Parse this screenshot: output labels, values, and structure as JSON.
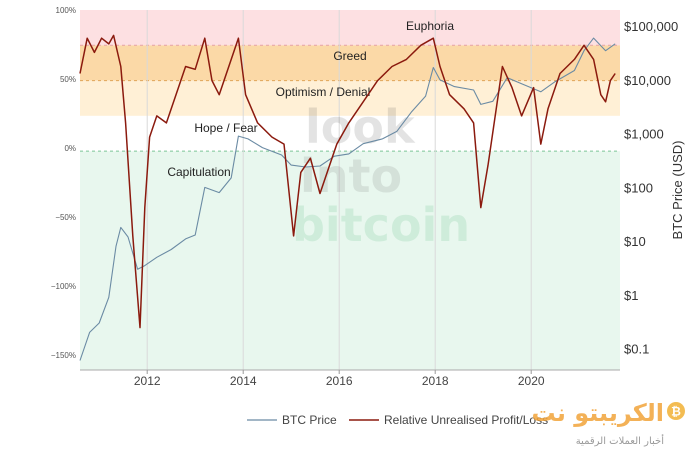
{
  "chart_data": {
    "type": "line",
    "title": "",
    "xlabel": "",
    "ylabel": "BTC Price (USD)",
    "x_ticks": [
      "2012",
      "2014",
      "2016",
      "2018",
      "2020"
    ],
    "x_range": [
      2010.6,
      2021.85
    ],
    "left_axis": {
      "ticks": [
        "100%",
        "50%",
        "0%",
        "−50%",
        "−100%",
        "−150%"
      ],
      "range": [
        -155,
        100
      ]
    },
    "right_axis": {
      "label": "BTC Price (USD)",
      "scale": "log",
      "ticks": [
        "$100,000",
        "$10,000",
        "$1,000",
        "$100",
        "$10",
        "$1",
        "$0.1"
      ],
      "range": [
        0.04,
        200000
      ]
    },
    "zones": [
      {
        "label": "Euphoria",
        "from": 75,
        "to": 100,
        "color": "#fde0e2"
      },
      {
        "label": "Greed",
        "from": 50,
        "to": 75,
        "color": "#fbd9a7"
      },
      {
        "label": "Optimism / Denial",
        "from": 25,
        "to": 50,
        "color": "#fff0d6"
      },
      {
        "label": "Hope / Fear",
        "from": 0,
        "to": 25,
        "color": "#ffffff"
      },
      {
        "label": "Capitulation",
        "from": -155,
        "to": 0,
        "color": "#e8f7ee"
      }
    ],
    "grid": true,
    "legend_position": "bottom",
    "series": [
      {
        "name": "BTC Price",
        "color": "#6b8ba4",
        "axis": "right",
        "x": [
          2010.6,
          2010.8,
          2011.0,
          2011.2,
          2011.35,
          2011.45,
          2011.6,
          2011.8,
          2011.95,
          2012.2,
          2012.5,
          2012.8,
          2013.0,
          2013.2,
          2013.5,
          2013.75,
          2013.9,
          2014.1,
          2014.4,
          2014.8,
          2015.0,
          2015.3,
          2015.6,
          2015.9,
          2016.2,
          2016.5,
          2016.9,
          2017.2,
          2017.5,
          2017.8,
          2017.96,
          2018.1,
          2018.4,
          2018.8,
          2018.95,
          2019.2,
          2019.5,
          2019.8,
          2020.2,
          2020.5,
          2020.9,
          2021.1,
          2021.3,
          2021.55,
          2021.75
        ],
        "y": [
          0.06,
          0.2,
          0.3,
          0.9,
          8,
          18,
          12,
          3,
          3.5,
          5,
          7,
          11,
          13,
          100,
          80,
          150,
          900,
          800,
          550,
          400,
          260,
          240,
          250,
          380,
          420,
          650,
          800,
          1100,
          2500,
          5000,
          17000,
          10000,
          7500,
          6500,
          3500,
          4000,
          11000,
          8500,
          6000,
          9300,
          15000,
          35000,
          60000,
          35000,
          47000
        ]
      },
      {
        "name": "Relative Unrealised Profit/Loss",
        "color": "#8b1a0e",
        "axis": "left",
        "x": [
          2010.6,
          2010.75,
          2010.9,
          2011.05,
          2011.2,
          2011.3,
          2011.45,
          2011.55,
          2011.7,
          2011.85,
          2011.95,
          2012.05,
          2012.2,
          2012.4,
          2012.6,
          2012.8,
          2013.0,
          2013.2,
          2013.35,
          2013.5,
          2013.7,
          2013.9,
          2014.05,
          2014.3,
          2014.6,
          2014.85,
          2015.05,
          2015.2,
          2015.4,
          2015.6,
          2015.8,
          2015.95,
          2016.2,
          2016.5,
          2016.8,
          2017.1,
          2017.4,
          2017.7,
          2017.96,
          2018.1,
          2018.3,
          2018.6,
          2018.8,
          2018.95,
          2019.1,
          2019.4,
          2019.6,
          2019.8,
          2020.05,
          2020.2,
          2020.35,
          2020.6,
          2020.9,
          2021.1,
          2021.3,
          2021.45,
          2021.55,
          2021.65,
          2021.75
        ],
        "y": [
          55,
          80,
          70,
          80,
          76,
          82,
          60,
          20,
          -60,
          -125,
          -40,
          10,
          25,
          20,
          40,
          60,
          58,
          80,
          50,
          40,
          60,
          80,
          40,
          20,
          10,
          5,
          -60,
          -15,
          -5,
          -30,
          -10,
          5,
          20,
          35,
          50,
          60,
          65,
          75,
          80,
          60,
          40,
          30,
          20,
          -40,
          -10,
          60,
          45,
          25,
          45,
          5,
          30,
          55,
          65,
          75,
          65,
          40,
          35,
          50,
          55
        ]
      }
    ]
  },
  "watermark": {
    "line1": "look",
    "line2": "into",
    "line3": "bitcoin"
  },
  "legend": {
    "btc_label": "BTC Price",
    "rupl_label": "Relative Unrealised Profit/Loss"
  },
  "brand": {
    "name": "الكريبتو نت",
    "tagline": "أخبار العملات الرقمية",
    "coin_symbol": "₿"
  }
}
